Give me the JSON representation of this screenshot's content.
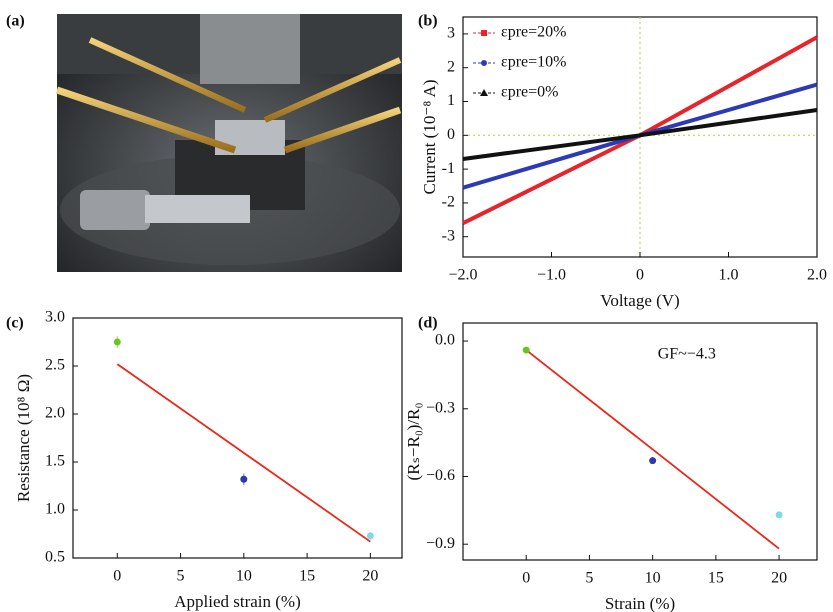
{
  "photo": {
    "label": "(a)"
  },
  "chart_data": [
    {
      "type": "line",
      "label": "(b)",
      "x": [
        -2,
        0,
        2
      ],
      "xlabel": "Voltage (V)",
      "ylabel": "Current (10⁻⁸ A)",
      "xlim": [
        -2,
        2
      ],
      "xticks": [
        {
          "value": -2,
          "label": "−2.0"
        },
        {
          "value": -1,
          "label": "−1.0"
        },
        0,
        {
          "value": 1,
          "label": "1.0"
        },
        {
          "value": 2,
          "label": "2.0"
        }
      ],
      "ylim": [
        -3.6,
        3.5
      ],
      "yticks": [
        -3,
        -2,
        -1,
        0,
        1,
        2,
        3
      ],
      "zero_lines": true,
      "legend": "upper left",
      "series": [
        {
          "name": "εpre=20%",
          "color": "#e8242a",
          "marker": "square",
          "values": [
            -2.6,
            0,
            2.9
          ]
        },
        {
          "name": "εpre=10%",
          "color": "#2c3bb5",
          "marker": "circle",
          "values": [
            -1.55,
            0,
            1.5
          ]
        },
        {
          "name": "εpre=0%",
          "color": "#111111",
          "marker": "triangle",
          "values": [
            -0.7,
            0,
            0.75
          ]
        }
      ]
    },
    {
      "type": "scatter",
      "label": "(c)",
      "x": [
        0,
        10,
        20
      ],
      "values": [
        2.75,
        1.32,
        0.73
      ],
      "errors": [
        0.06,
        0.06,
        0.04
      ],
      "colors": [
        "#6cc420",
        "#2a3aa8",
        "#7fd8e8"
      ],
      "fit": {
        "color": "#e8291c",
        "x": [
          0,
          20
        ],
        "values": [
          2.52,
          0.67
        ]
      },
      "xlabel": "Applied strain (%)",
      "ylabel": "Resistance (10⁸ Ω)",
      "xlim": [
        -3.5,
        22.5
      ],
      "xticks": [
        0,
        5,
        10,
        15,
        20
      ],
      "ylim": [
        0.5,
        3.0
      ],
      "yticks": [
        0.5,
        {
          "value": 1,
          "label": "1.0"
        },
        1.5,
        {
          "value": 2,
          "label": "2.0"
        },
        2.5,
        {
          "value": 3,
          "label": "3.0"
        }
      ]
    },
    {
      "type": "scatter",
      "label": "(d)",
      "x": [
        0,
        10,
        20
      ],
      "values": [
        -0.04,
        -0.53,
        -0.77
      ],
      "colors": [
        "#6cc420",
        "#2a3aa8",
        "#7fd8e8"
      ],
      "fit": {
        "color": "#e8291c",
        "x": [
          0,
          20
        ],
        "values": [
          -0.04,
          -0.92
        ]
      },
      "annotation": "GF~−4.3",
      "xlabel": "Strain (%)",
      "ylabel": "(Rₛ−R₀)/R₀",
      "xlim": [
        -5,
        23
      ],
      "xticks": [
        0,
        5,
        10,
        15,
        20
      ],
      "ylim": [
        -0.97,
        0.08
      ],
      "yticks": [
        {
          "value": 0,
          "label": "0.0"
        },
        {
          "value": -0.3,
          "label": "−0.3"
        },
        {
          "value": -0.6,
          "label": "−0.6"
        },
        {
          "value": -0.9,
          "label": "−0.9"
        }
      ]
    }
  ]
}
